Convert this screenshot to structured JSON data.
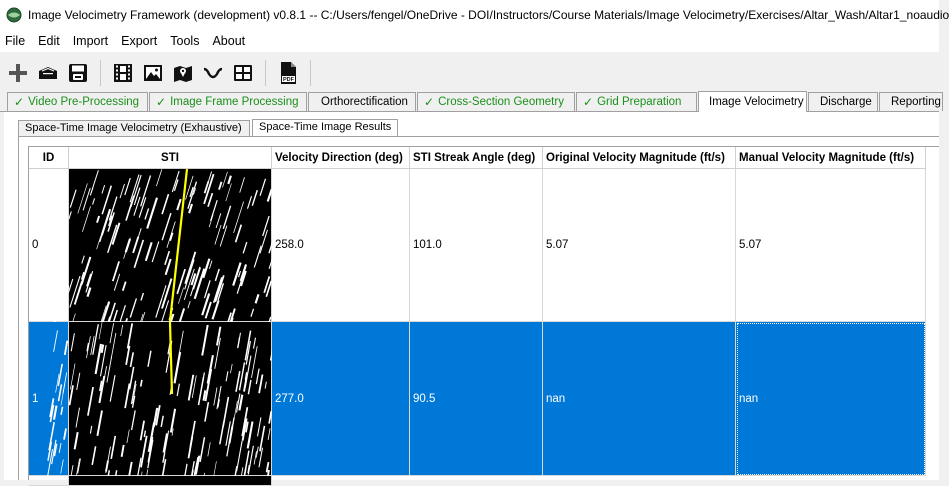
{
  "window": {
    "title": "Image Velocimetry Framework (development) v0.8.1 -- C:/Users/fengel/OneDrive - DOI/Instructors/Course Materials/Image Velocimetry/Exercises/Altar_Wash/Altar1_noaudio",
    "icon": "usgs-globe-icon"
  },
  "menu": [
    "File",
    "Edit",
    "Import",
    "Export",
    "Tools",
    "About"
  ],
  "toolbar": {
    "buttons": [
      "new-project-icon",
      "open-project-icon",
      "save-icon",
      "video-icon",
      "image-icon",
      "map-icon",
      "cross-section-icon",
      "grid-icon",
      "pdf-icon"
    ],
    "pdf_label": "PDF"
  },
  "tabs": [
    {
      "label": "Video Pre-Processing",
      "done": true
    },
    {
      "label": "Image Frame Processing",
      "done": true
    },
    {
      "label": "Orthorectification",
      "done": false
    },
    {
      "label": "Cross-Section Geometry",
      "done": true
    },
    {
      "label": "Grid Preparation",
      "done": true
    },
    {
      "label": "Image Velocimetry",
      "done": false,
      "active": true
    },
    {
      "label": "Discharge",
      "done": false
    },
    {
      "label": "Reporting",
      "done": false
    }
  ],
  "subtabs": [
    {
      "label": "Space-Time Image Velocimetry (Exhaustive)"
    },
    {
      "label": "Space-Time Image Results",
      "active": true
    }
  ],
  "table": {
    "columns": [
      "ID",
      "STI",
      "Velocity Direction (deg)",
      "STI Streak Angle (deg)",
      "Original Velocity Magnitude (ft/s)",
      "Manual Velocity Magnitude (ft/s)"
    ],
    "rows": [
      {
        "id": "0",
        "velocity_direction": "258.0",
        "streak_angle": "101.0",
        "original_velocity": "5.07",
        "manual_velocity": "5.07",
        "selected": false
      },
      {
        "id": "1",
        "velocity_direction": "277.0",
        "streak_angle": "90.5",
        "original_velocity": "nan",
        "manual_velocity": "nan",
        "selected": true
      }
    ]
  },
  "colors": {
    "selection": "#0078d7",
    "done_tab": "#1a8f1a",
    "streak_line": "#ffff00"
  }
}
